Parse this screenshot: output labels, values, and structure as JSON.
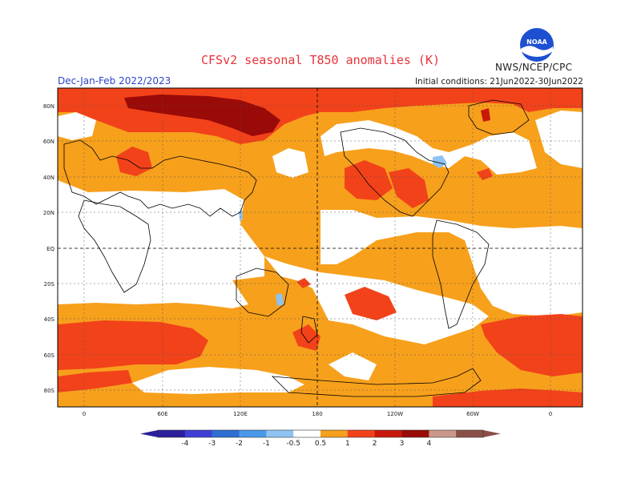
{
  "header": {
    "title": "CFSv2 seasonal T850 anomalies (K)",
    "agency": "NWS/NCEP/CPC",
    "logo_text": "NOAA",
    "period": "Dec-Jan-Feb 2022/2023",
    "initial_conditions": "Initial conditions: 21Jun2022-30Jun2022"
  },
  "axes": {
    "lat_labels": [
      "80N",
      "60N",
      "40N",
      "20N",
      "EQ",
      "20S",
      "40S",
      "60S",
      "80S"
    ],
    "lon_labels": [
      "0",
      "60E",
      "120E",
      "180",
      "120W",
      "60W",
      "0"
    ]
  },
  "colorbar": {
    "labels": [
      "-4",
      "-3",
      "-2",
      "-1",
      "-0.5",
      "0.5",
      "1",
      "2",
      "3",
      "4"
    ],
    "colors": [
      "#2a1f9c",
      "#3f3fd6",
      "#2c6fd4",
      "#4a98ea",
      "#8ec3f2",
      "#ffffff",
      "#f7a01c",
      "#f2421a",
      "#c8180c",
      "#9a0a08",
      "#c9988a",
      "#8a5048"
    ]
  },
  "legend_colors": {
    "anom_0_5_to_1": "#f7a01c",
    "anom_1_to_2": "#f2421a",
    "anom_2_to_3": "#c8180c",
    "anom_3_to_4": "#9a0a08",
    "anom_neg_0_5_to_neg_1": "#8ec3f2"
  }
}
